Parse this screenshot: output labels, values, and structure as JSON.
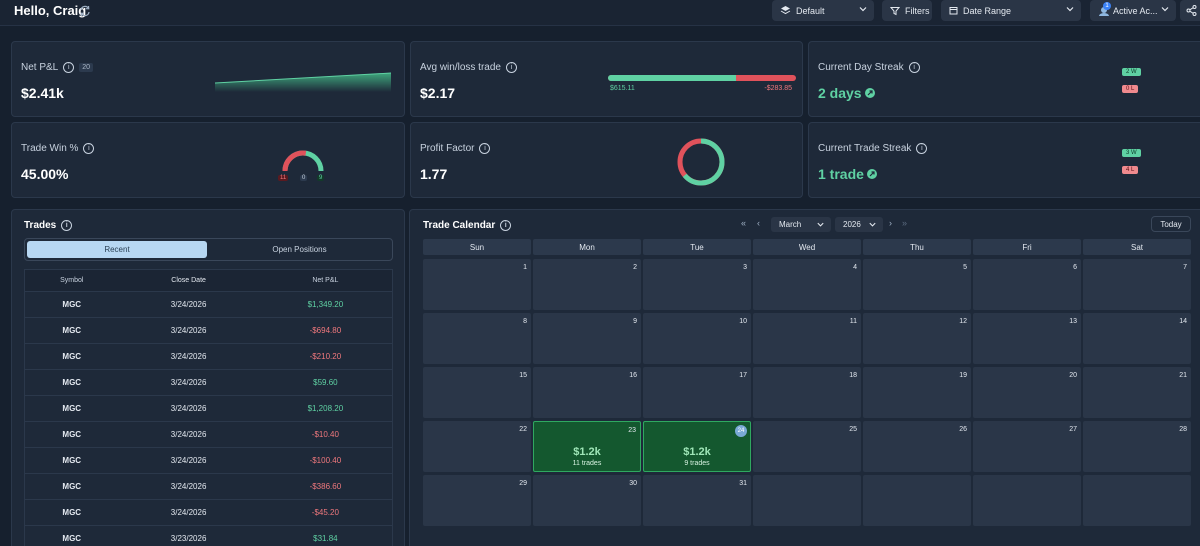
{
  "header": {
    "greeting": "Hello, Craig",
    "layout_select": "Default",
    "filters_label": "Filters",
    "date_range_label": "Date Range",
    "accounts_label": "Active Ac...",
    "accounts_count": "1"
  },
  "stats": {
    "net_pnl": {
      "title": "Net P&L",
      "count": "20",
      "value": "$2.41k"
    },
    "avg_win_loss": {
      "title": "Avg win/loss trade",
      "value": "$2.17",
      "win": "$615.11",
      "loss": "-$283.85",
      "win_fraction": 0.68
    },
    "day_streak": {
      "title": "Current Day Streak",
      "value": "2 days",
      "wins": "2 W",
      "losses": "0 L"
    },
    "win_pct": {
      "title": "Trade Win %",
      "value": "45.00%",
      "losses": "11",
      "breakeven": "0",
      "wins": "9",
      "win_fraction": 0.45
    },
    "profit_factor": {
      "title": "Profit Factor",
      "value": "1.77",
      "win_fraction": 0.64
    },
    "trade_streak": {
      "title": "Current Trade Streak",
      "value": "1 trade",
      "wins": "3 W",
      "losses": "4 L"
    }
  },
  "trades": {
    "title": "Trades",
    "tabs": [
      "Recent",
      "Open Positions"
    ],
    "columns": [
      "Symbol",
      "Close Date",
      "Net P&L"
    ],
    "rows": [
      {
        "symbol": "MGC",
        "date": "3/24/2026",
        "pnl": "$1,349.20"
      },
      {
        "symbol": "MGC",
        "date": "3/24/2026",
        "pnl": "-$694.80"
      },
      {
        "symbol": "MGC",
        "date": "3/24/2026",
        "pnl": "-$210.20"
      },
      {
        "symbol": "MGC",
        "date": "3/24/2026",
        "pnl": "$59.60"
      },
      {
        "symbol": "MGC",
        "date": "3/24/2026",
        "pnl": "$1,208.20"
      },
      {
        "symbol": "MGC",
        "date": "3/24/2026",
        "pnl": "-$10.40"
      },
      {
        "symbol": "MGC",
        "date": "3/24/2026",
        "pnl": "-$100.40"
      },
      {
        "symbol": "MGC",
        "date": "3/24/2026",
        "pnl": "-$386.60"
      },
      {
        "symbol": "MGC",
        "date": "3/24/2026",
        "pnl": "-$45.20"
      },
      {
        "symbol": "MGC",
        "date": "3/23/2026",
        "pnl": "$31.84"
      }
    ]
  },
  "calendar": {
    "title": "Trade Calendar",
    "month": "March",
    "year": "2026",
    "today_label": "Today",
    "weekdays": [
      "Sun",
      "Mon",
      "Tue",
      "Wed",
      "Thu",
      "Fri",
      "Sat"
    ],
    "days": [
      "1",
      "2",
      "3",
      "4",
      "5",
      "6",
      "7",
      "8",
      "9",
      "10",
      "11",
      "12",
      "13",
      "14",
      "15",
      "16",
      "17",
      "18",
      "19",
      "20",
      "21",
      "22",
      "23",
      "24",
      "25",
      "26",
      "27",
      "28",
      "29",
      "30",
      "31"
    ],
    "highlights": {
      "23": {
        "amount": "$1.2k",
        "trades": "11 trades"
      },
      "24": {
        "amount": "$1.2k",
        "trades": "9 trades"
      }
    },
    "today": "24"
  },
  "colors": {
    "positive": "#5fd1a3",
    "negative": "#f0787d",
    "win_day": "#14582f"
  }
}
